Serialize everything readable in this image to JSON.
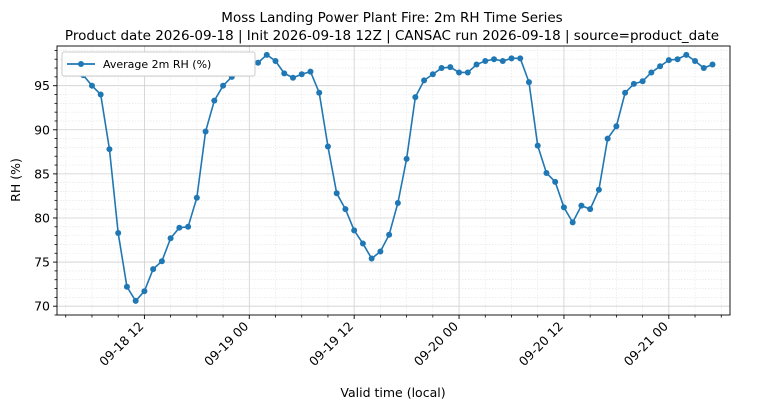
{
  "chart_data": {
    "type": "line",
    "title_line1": "Moss Landing Power Plant Fire: 2m RH Time Series",
    "title_line2": "Product date 2026-09-18 | Init 2026-09-18 12Z | CANSAC run 2026-09-18 | source=product_date",
    "xlabel": "Valid time (local)",
    "ylabel": "RH (%)",
    "ylim": [
      69.0,
      99.5
    ],
    "xlim": [
      "2026-09-18 02:00",
      "2026-09-21 07:00"
    ],
    "x_ticks": [
      "09-18 12",
      "09-19 00",
      "09-19 12",
      "09-20 00",
      "09-20 12",
      "09-21 00"
    ],
    "y_ticks": [
      70,
      75,
      80,
      85,
      90,
      95
    ],
    "grid": true,
    "legend_position": "upper-left",
    "series": [
      {
        "name": "Average 2m RH (%)",
        "color": "#1f77b4",
        "marker": "circle",
        "x": [
          "2026-09-18 05:00",
          "2026-09-18 06:00",
          "2026-09-18 07:00",
          "2026-09-18 08:00",
          "2026-09-18 09:00",
          "2026-09-18 10:00",
          "2026-09-18 11:00",
          "2026-09-18 12:00",
          "2026-09-18 13:00",
          "2026-09-18 14:00",
          "2026-09-18 15:00",
          "2026-09-18 16:00",
          "2026-09-18 17:00",
          "2026-09-18 18:00",
          "2026-09-18 19:00",
          "2026-09-18 20:00",
          "2026-09-18 21:00",
          "2026-09-18 22:00",
          "2026-09-18 23:00",
          "2026-09-19 00:00",
          "2026-09-19 01:00",
          "2026-09-19 02:00",
          "2026-09-19 03:00",
          "2026-09-19 04:00",
          "2026-09-19 05:00",
          "2026-09-19 06:00",
          "2026-09-19 07:00",
          "2026-09-19 08:00",
          "2026-09-19 09:00",
          "2026-09-19 10:00",
          "2026-09-19 11:00",
          "2026-09-19 12:00",
          "2026-09-19 13:00",
          "2026-09-19 14:00",
          "2026-09-19 15:00",
          "2026-09-19 16:00",
          "2026-09-19 17:00",
          "2026-09-19 18:00",
          "2026-09-19 19:00",
          "2026-09-19 20:00",
          "2026-09-19 21:00",
          "2026-09-19 22:00",
          "2026-09-19 23:00",
          "2026-09-20 00:00",
          "2026-09-20 01:00",
          "2026-09-20 02:00",
          "2026-09-20 03:00",
          "2026-09-20 04:00",
          "2026-09-20 05:00",
          "2026-09-20 06:00",
          "2026-09-20 07:00",
          "2026-09-20 08:00",
          "2026-09-20 09:00",
          "2026-09-20 10:00",
          "2026-09-20 11:00",
          "2026-09-20 12:00",
          "2026-09-20 13:00",
          "2026-09-20 14:00",
          "2026-09-20 15:00",
          "2026-09-20 16:00",
          "2026-09-20 17:00",
          "2026-09-20 18:00",
          "2026-09-20 19:00",
          "2026-09-20 20:00",
          "2026-09-20 21:00",
          "2026-09-20 22:00",
          "2026-09-20 23:00",
          "2026-09-21 00:00",
          "2026-09-21 01:00",
          "2026-09-21 02:00",
          "2026-09-21 03:00",
          "2026-09-21 04:00",
          "2026-09-21 05:00"
        ],
        "values": [
          96.2,
          95.0,
          94.0,
          87.8,
          78.3,
          72.2,
          70.6,
          71.7,
          74.2,
          75.1,
          77.7,
          78.9,
          79.0,
          82.3,
          89.8,
          93.3,
          95.0,
          96.0,
          96.8,
          97.2,
          97.6,
          98.5,
          97.8,
          96.4,
          95.9,
          96.3,
          96.6,
          94.2,
          88.1,
          82.8,
          81.0,
          78.6,
          77.1,
          75.4,
          76.2,
          78.1,
          81.7,
          86.7,
          93.7,
          95.6,
          96.3,
          97.0,
          97.1,
          96.5,
          96.5,
          97.4,
          97.8,
          98.0,
          97.8,
          98.1,
          98.1,
          95.4,
          88.2,
          85.1,
          84.1,
          81.2,
          79.5,
          81.4,
          81.0,
          83.2,
          89.0,
          90.4,
          94.2,
          95.2,
          95.5,
          96.5,
          97.2,
          97.9,
          98.0,
          98.5,
          97.8,
          97.0,
          97.4
        ]
      }
    ]
  }
}
